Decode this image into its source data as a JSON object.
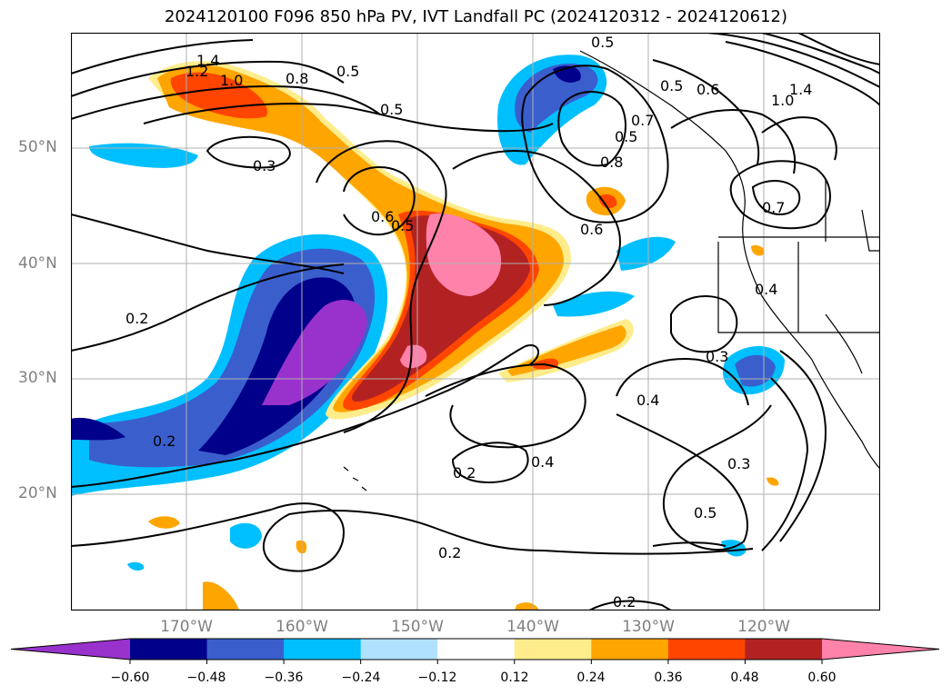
{
  "title": "2024120100 F096 850 hPa PV, IVT Landfall PC (2024120312 - 2024120612)",
  "lat_labels": [
    "50°N",
    "40°N",
    "30°N",
    "20°N"
  ],
  "lon_labels": [
    "170°W",
    "160°W",
    "150°W",
    "140°W",
    "130°W",
    "120°W"
  ],
  "colorbar": {
    "ticks": [
      "−0.60",
      "−0.48",
      "−0.36",
      "−0.24",
      "−0.12",
      "0.12",
      "0.24",
      "0.36",
      "0.48",
      "0.60"
    ],
    "colors": [
      "#9932cc",
      "#00008b",
      "#3a5fcd",
      "#00bfff",
      "#b0e2ff",
      "#ffffff",
      "#ffec8b",
      "#ffa500",
      "#ff4500",
      "#b22222",
      "#ff82ab"
    ]
  },
  "contour_labels": [
    "1.4",
    "1.2",
    "1.0",
    "0.8",
    "0.5",
    "0.5",
    "0.3",
    "0.6",
    "0.5",
    "0.5",
    "0.5",
    "0.7",
    "0.8",
    "0.6",
    "0.5",
    "0.6",
    "1.0",
    "1.4",
    "0.7",
    "0.4",
    "0.3",
    "0.2",
    "0.2",
    "0.2",
    "0.4",
    "0.4",
    "0.3",
    "0.5",
    "0.2",
    "0.2"
  ]
}
